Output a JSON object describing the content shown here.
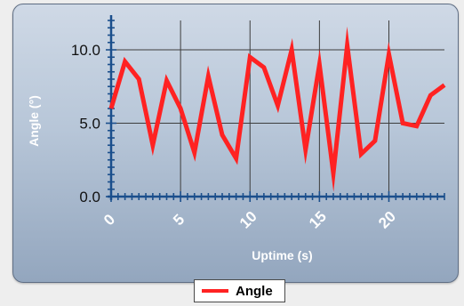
{
  "chart_data": {
    "type": "line",
    "xlabel": "Uptime (s)",
    "ylabel": "Angle (°)",
    "xlim": [
      0,
      24
    ],
    "ylim": [
      0,
      12
    ],
    "x_ticks": [
      0,
      5,
      10,
      15,
      20
    ],
    "x_tick_labels": [
      "0",
      "5",
      "10",
      "15",
      "20"
    ],
    "y_ticks": [
      0,
      5,
      10
    ],
    "y_tick_labels": [
      "0.0",
      "5.0",
      "10.0"
    ],
    "grid": true,
    "legend_position": "bottom-center",
    "series": [
      {
        "name": "Angle",
        "color": "#ff2222",
        "x": [
          0,
          1,
          2,
          3,
          4,
          5,
          6,
          7,
          8,
          9,
          10,
          11,
          12,
          13,
          14,
          15,
          16,
          17,
          18,
          19,
          20,
          21,
          22,
          23,
          24
        ],
        "y": [
          6.0,
          9.2,
          8.0,
          3.5,
          7.9,
          6.0,
          3.0,
          8.2,
          4.2,
          2.6,
          9.5,
          8.8,
          6.2,
          10.0,
          3.2,
          9.0,
          1.6,
          10.3,
          2.9,
          3.8,
          9.7,
          5.0,
          4.8,
          6.9,
          7.6
        ]
      }
    ]
  },
  "legend": {
    "label": "Angle"
  }
}
